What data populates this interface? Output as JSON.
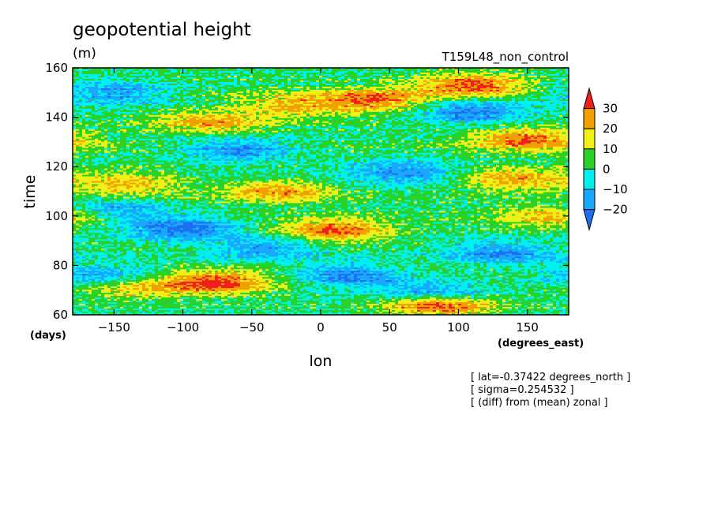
{
  "chart_data": {
    "type": "heatmap",
    "title": "geopotential height",
    "units": "(m)",
    "run_label": "T159L48_non_control",
    "xlabel": "lon",
    "xunits": "(degrees_east)",
    "ylabel": "time",
    "yunits": "(days)",
    "xlim": [
      -180,
      180
    ],
    "ylim": [
      60,
      160
    ],
    "xticks": [
      -150,
      -100,
      -50,
      0,
      50,
      100,
      150
    ],
    "yticks": [
      60,
      80,
      100,
      120,
      140,
      160
    ],
    "colorbar": {
      "levels": [
        -20,
        -10,
        0,
        10,
        20,
        30
      ],
      "colors": [
        "#1e6ef0",
        "#19a8ff",
        "#00f0f0",
        "#28d228",
        "#f0f018",
        "#f0a000",
        "#f01e1e"
      ],
      "extend": "both"
    },
    "notes": [
      "[ lat=-0.37422 degrees_north ]",
      "[ sigma=0.254532 ]",
      "[ (diff) from (mean) zonal ]"
    ],
    "anomaly_features": [
      {
        "lon": -75,
        "time": 73,
        "value": 32
      },
      {
        "lon": -135,
        "time": 71,
        "value": 18
      },
      {
        "lon": 85,
        "time": 64,
        "value": 34
      },
      {
        "lon": 10,
        "time": 94,
        "value": 30
      },
      {
        "lon": -30,
        "time": 110,
        "value": 24
      },
      {
        "lon": -140,
        "time": 113,
        "value": 22
      },
      {
        "lon": 140,
        "time": 115,
        "value": 26
      },
      {
        "lon": 150,
        "time": 131,
        "value": 28
      },
      {
        "lon": 40,
        "time": 147,
        "value": 28
      },
      {
        "lon": -80,
        "time": 138,
        "value": 22
      },
      {
        "lon": 110,
        "time": 153,
        "value": 30
      },
      {
        "lon": -20,
        "time": 145,
        "value": 20
      },
      {
        "lon": 170,
        "time": 100,
        "value": 22
      },
      {
        "lon": -100,
        "time": 95,
        "value": -26
      },
      {
        "lon": -150,
        "time": 102,
        "value": -20
      },
      {
        "lon": 20,
        "time": 76,
        "value": -24
      },
      {
        "lon": 80,
        "time": 69,
        "value": -22
      },
      {
        "lon": -160,
        "time": 76,
        "value": -20
      },
      {
        "lon": 110,
        "time": 142,
        "value": -24
      },
      {
        "lon": -150,
        "time": 150,
        "value": -20
      },
      {
        "lon": 60,
        "time": 118,
        "value": -20
      },
      {
        "lon": -60,
        "time": 127,
        "value": -22
      },
      {
        "lon": 130,
        "time": 85,
        "value": -20
      },
      {
        "lon": -40,
        "time": 87,
        "value": -18
      }
    ]
  }
}
